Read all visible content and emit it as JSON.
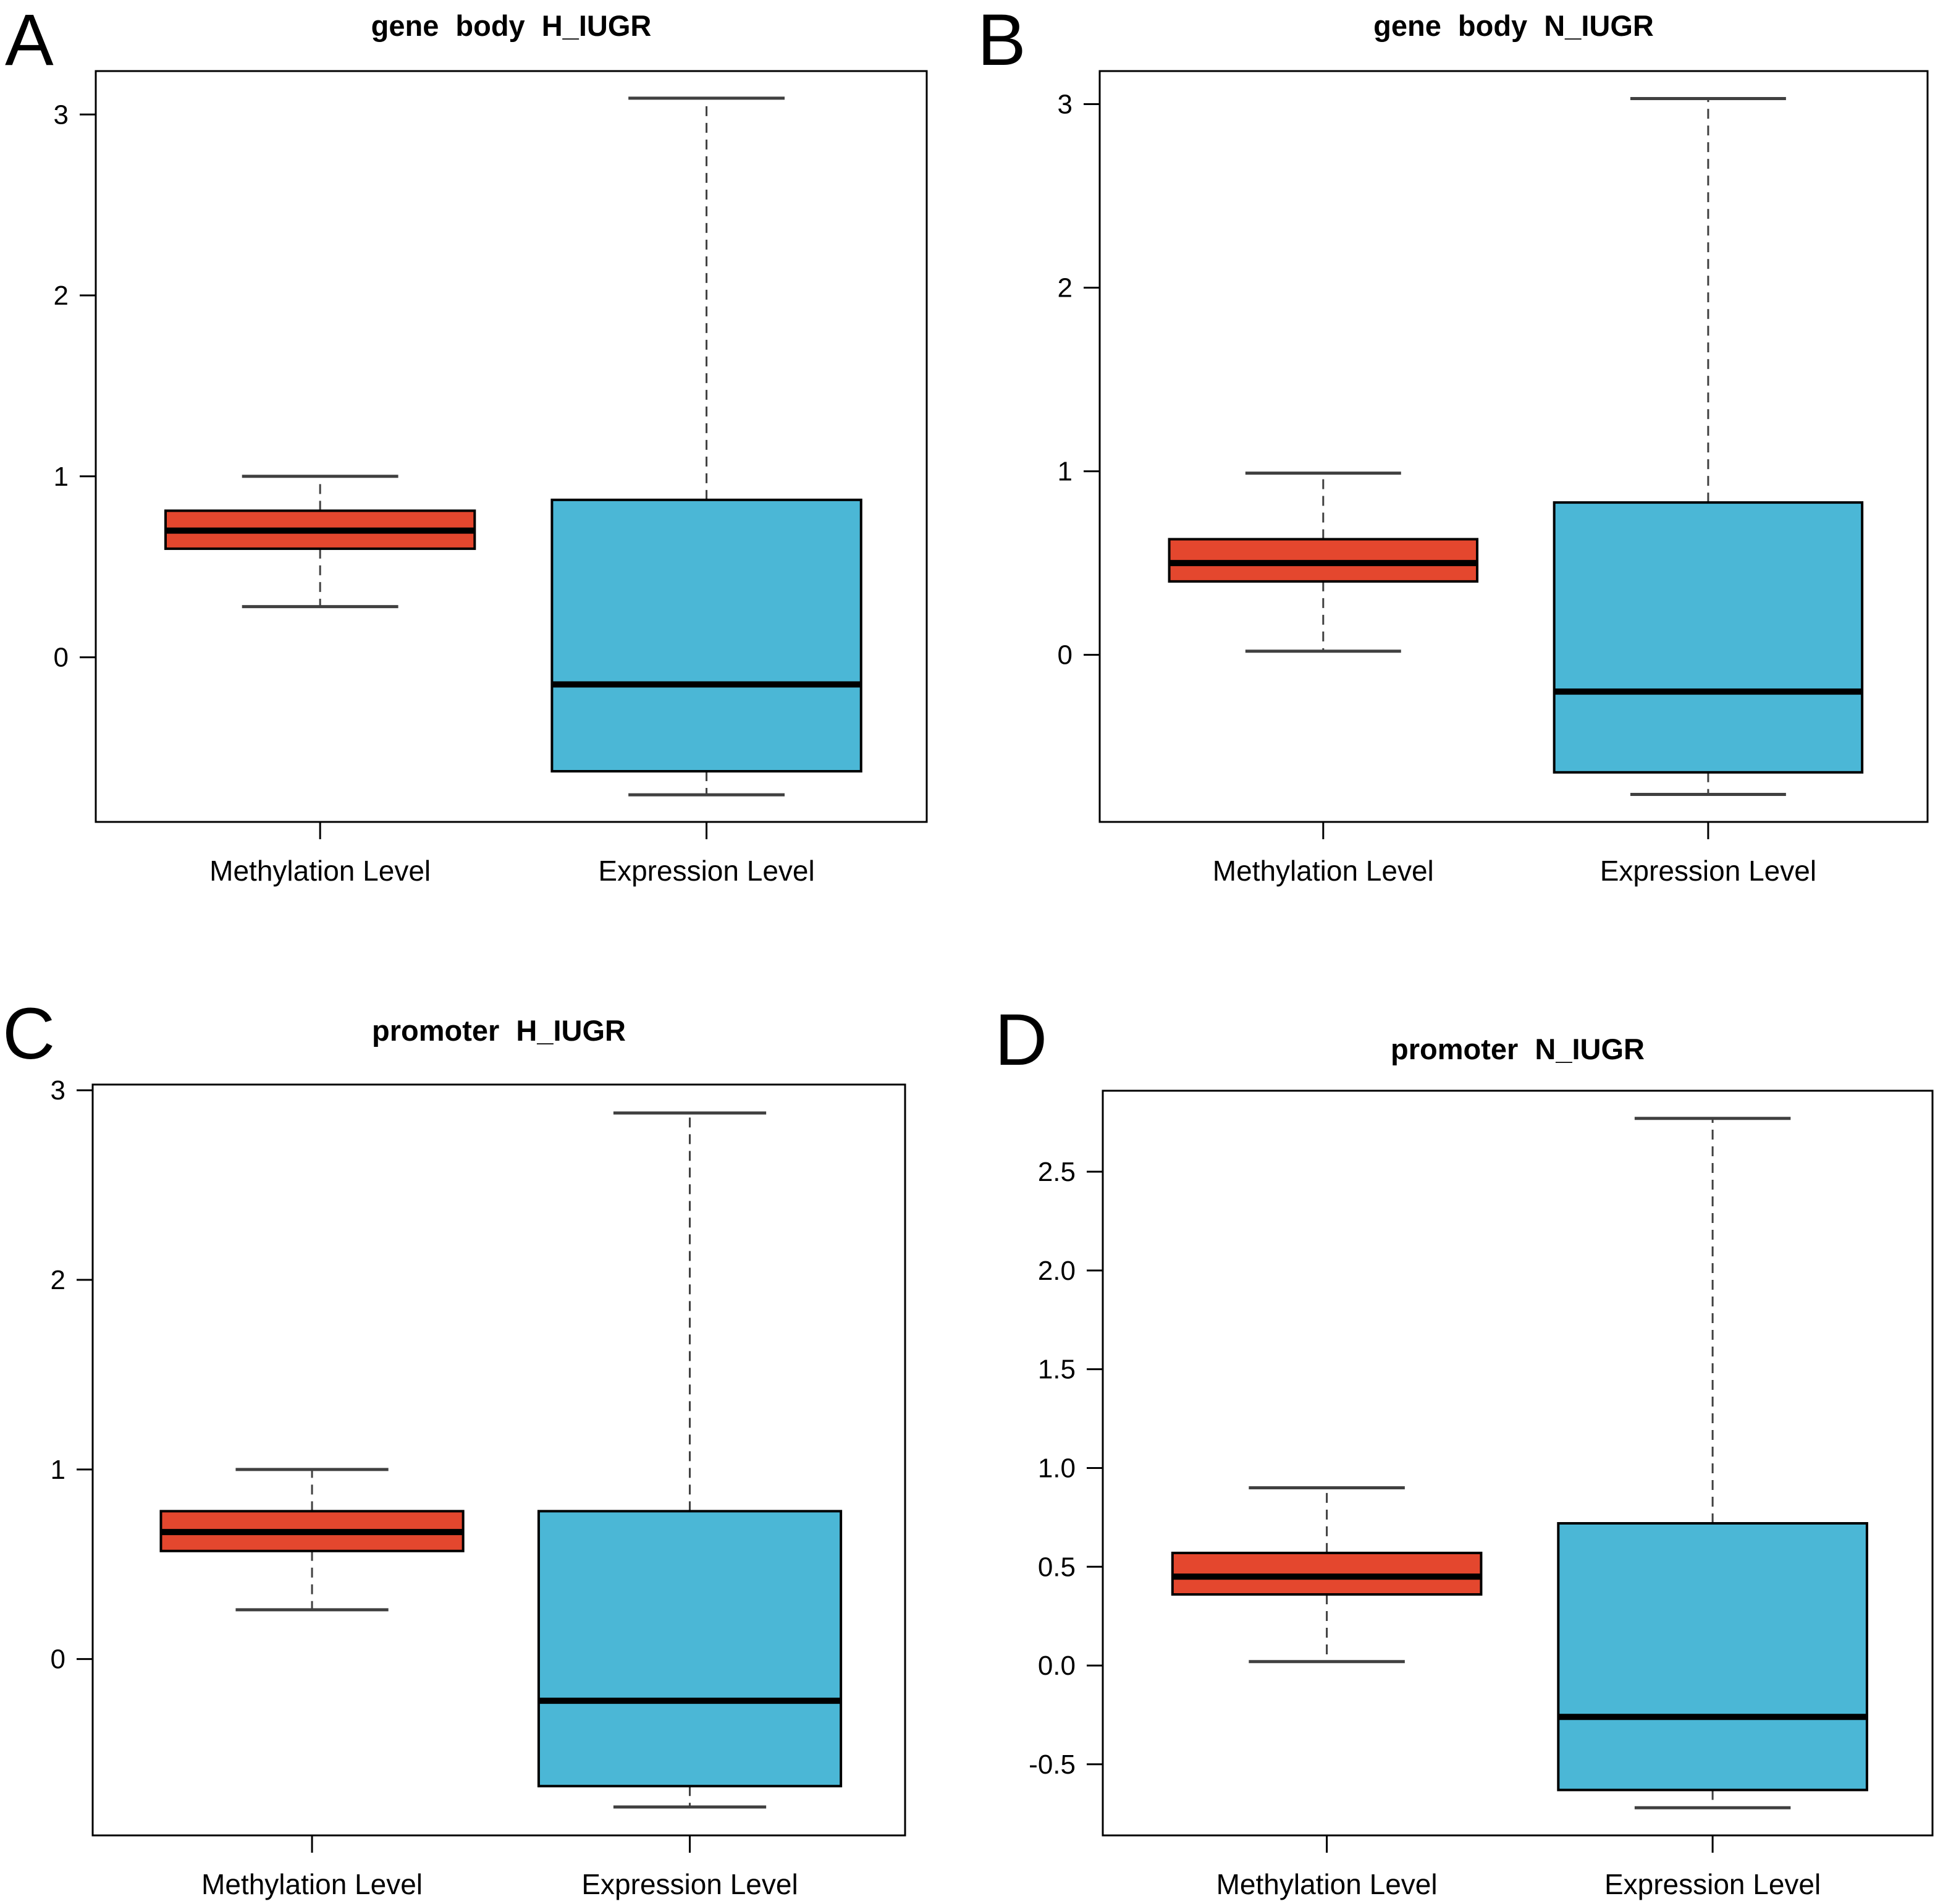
{
  "colors": {
    "methylation_box_fill": "#E4472E",
    "expression_box_fill": "#4BB7D6",
    "box_border": "#000000",
    "median_line": "#000000",
    "whisker_line": "#404040",
    "frame": "#000000",
    "background": "#ffffff"
  },
  "x_axis_categories": [
    "Methylation Level",
    "Expression Level"
  ],
  "chart_data": [
    {
      "type": "box",
      "panel_letter": "A",
      "title": "gene body H_IUGR",
      "categories": [
        "Methylation Level",
        "Expression Level"
      ],
      "series": [
        {
          "name": "Methylation Level",
          "color": "#E4472E",
          "whisker_low": 0.28,
          "q1": 0.6,
          "median": 0.7,
          "q3": 0.81,
          "whisker_high": 1.0
        },
        {
          "name": "Expression Level",
          "color": "#4BB7D6",
          "whisker_low": -0.76,
          "q1": -0.63,
          "median": -0.15,
          "q3": 0.87,
          "whisker_high": 3.09
        }
      ],
      "yticks": [
        0,
        1,
        2,
        3
      ],
      "ytick_labels": [
        "0",
        "1",
        "2",
        "3"
      ],
      "ylim": [
        -0.91,
        3.24
      ],
      "grid": false,
      "legend": false
    },
    {
      "type": "box",
      "panel_letter": "B",
      "title": "gene body N_IUGR",
      "categories": [
        "Methylation Level",
        "Expression Level"
      ],
      "series": [
        {
          "name": "Methylation Level",
          "color": "#E4472E",
          "whisker_low": 0.02,
          "q1": 0.4,
          "median": 0.5,
          "q3": 0.63,
          "whisker_high": 0.99
        },
        {
          "name": "Expression Level",
          "color": "#4BB7D6",
          "whisker_low": -0.76,
          "q1": -0.64,
          "median": -0.2,
          "q3": 0.83,
          "whisker_high": 3.03
        }
      ],
      "yticks": [
        0,
        1,
        2,
        3
      ],
      "ytick_labels": [
        "0",
        "1",
        "2",
        "3"
      ],
      "ylim": [
        -0.91,
        3.18
      ],
      "grid": false,
      "legend": false
    },
    {
      "type": "box",
      "panel_letter": "C",
      "title": "promoter H_IUGR",
      "categories": [
        "Methylation Level",
        "Expression Level"
      ],
      "series": [
        {
          "name": "Methylation Level",
          "color": "#E4472E",
          "whisker_low": 0.26,
          "q1": 0.57,
          "median": 0.67,
          "q3": 0.78,
          "whisker_high": 1.0
        },
        {
          "name": "Expression Level",
          "color": "#4BB7D6",
          "whisker_low": -0.78,
          "q1": -0.67,
          "median": -0.22,
          "q3": 0.78,
          "whisker_high": 2.88
        }
      ],
      "yticks": [
        0,
        1,
        2,
        3
      ],
      "ytick_labels": [
        "0",
        "1",
        "2",
        "3"
      ],
      "ylim": [
        -0.93,
        3.03
      ],
      "grid": false,
      "legend": false
    },
    {
      "type": "box",
      "panel_letter": "D",
      "title": "promoter N_IUGR",
      "categories": [
        "Methylation Level",
        "Expression Level"
      ],
      "series": [
        {
          "name": "Methylation Level",
          "color": "#E4472E",
          "whisker_low": 0.02,
          "q1": 0.36,
          "median": 0.45,
          "q3": 0.57,
          "whisker_high": 0.9
        },
        {
          "name": "Expression Level",
          "color": "#4BB7D6",
          "whisker_low": -0.72,
          "q1": -0.63,
          "median": -0.26,
          "q3": 0.72,
          "whisker_high": 2.77
        }
      ],
      "yticks": [
        -0.5,
        0,
        0.5,
        1,
        1.5,
        2,
        2.5
      ],
      "ytick_labels": [
        "-0.5",
        "0.0",
        "0.5",
        "1.0",
        "1.5",
        "2.0",
        "2.5"
      ],
      "ylim": [
        -0.86,
        2.91
      ],
      "grid": false,
      "legend": false
    }
  ]
}
